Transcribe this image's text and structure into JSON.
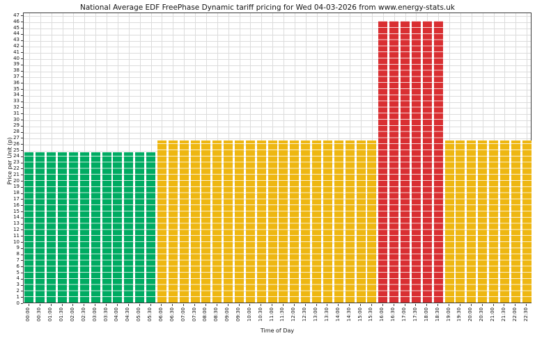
{
  "figure": {
    "title": "National Average EDF FreePhase Dynamic tariff pricing for Wed 04-03-2026 from www.energy-stats.uk",
    "xlabel": "Time of Day",
    "ylabel": "Price per Unit (p)"
  },
  "colors": {
    "green": "#00ab62",
    "amber": "#eeb712",
    "red": "#d92f32",
    "grid": "#dcdcdc",
    "axis": "#3a3a3a",
    "background": "#ffffff",
    "bar_stripe": "rgba(255,255,255,0.8)"
  },
  "chart_data": {
    "type": "bar",
    "title": "National Average EDF FreePhase Dynamic tariff pricing for Wed 04-03-2026 from www.energy-stats.uk",
    "xlabel": "Time of Day",
    "ylabel": "Price per Unit (p)",
    "ylim": [
      0,
      47.5
    ],
    "ytick_min": 0,
    "ytick_max": 47,
    "ytick_step": 1,
    "grid": true,
    "legend": "none",
    "categories": [
      "00:00",
      "00:30",
      "01:00",
      "01:30",
      "02:00",
      "02:30",
      "03:00",
      "03:30",
      "04:00",
      "04:30",
      "05:00",
      "05:30",
      "06:00",
      "06:30",
      "07:00",
      "07:30",
      "08:00",
      "08:30",
      "09:00",
      "09:30",
      "10:00",
      "10:30",
      "11:00",
      "11:30",
      "12:00",
      "12:30",
      "13:00",
      "13:30",
      "14:00",
      "14:30",
      "15:00",
      "15:30",
      "16:00",
      "16:30",
      "17:00",
      "17:30",
      "18:00",
      "18:30",
      "19:00",
      "19:30",
      "20:00",
      "20:30",
      "21:00",
      "21:30",
      "22:00",
      "22:30"
    ],
    "values": [
      24.5,
      24.5,
      24.5,
      24.5,
      24.5,
      24.5,
      24.5,
      24.5,
      24.5,
      24.5,
      24.5,
      24.5,
      26.5,
      26.5,
      26.5,
      26.5,
      26.5,
      26.5,
      26.5,
      26.5,
      26.5,
      26.5,
      26.5,
      26.5,
      26.5,
      26.5,
      26.5,
      26.5,
      26.5,
      26.5,
      26.5,
      26.5,
      46,
      46,
      46,
      46,
      46,
      46,
      26.5,
      26.5,
      26.5,
      26.5,
      26.5,
      26.5,
      26.5,
      26.5
    ],
    "bands": [
      "green",
      "green",
      "green",
      "green",
      "green",
      "green",
      "green",
      "green",
      "green",
      "green",
      "green",
      "green",
      "amber",
      "amber",
      "amber",
      "amber",
      "amber",
      "amber",
      "amber",
      "amber",
      "amber",
      "amber",
      "amber",
      "amber",
      "amber",
      "amber",
      "amber",
      "amber",
      "amber",
      "amber",
      "amber",
      "amber",
      "red",
      "red",
      "red",
      "red",
      "red",
      "red",
      "amber",
      "amber",
      "amber",
      "amber",
      "amber",
      "amber",
      "amber",
      "amber"
    ],
    "band_segments": [
      {
        "from": "00:00",
        "to": "05:30",
        "band": "green",
        "value": 24.5
      },
      {
        "from": "06:00",
        "to": "15:30",
        "band": "amber",
        "value": 26.5
      },
      {
        "from": "16:00",
        "to": "18:30",
        "band": "red",
        "value": 46
      },
      {
        "from": "19:00",
        "to": "22:30",
        "band": "amber",
        "value": 26.5
      }
    ]
  }
}
